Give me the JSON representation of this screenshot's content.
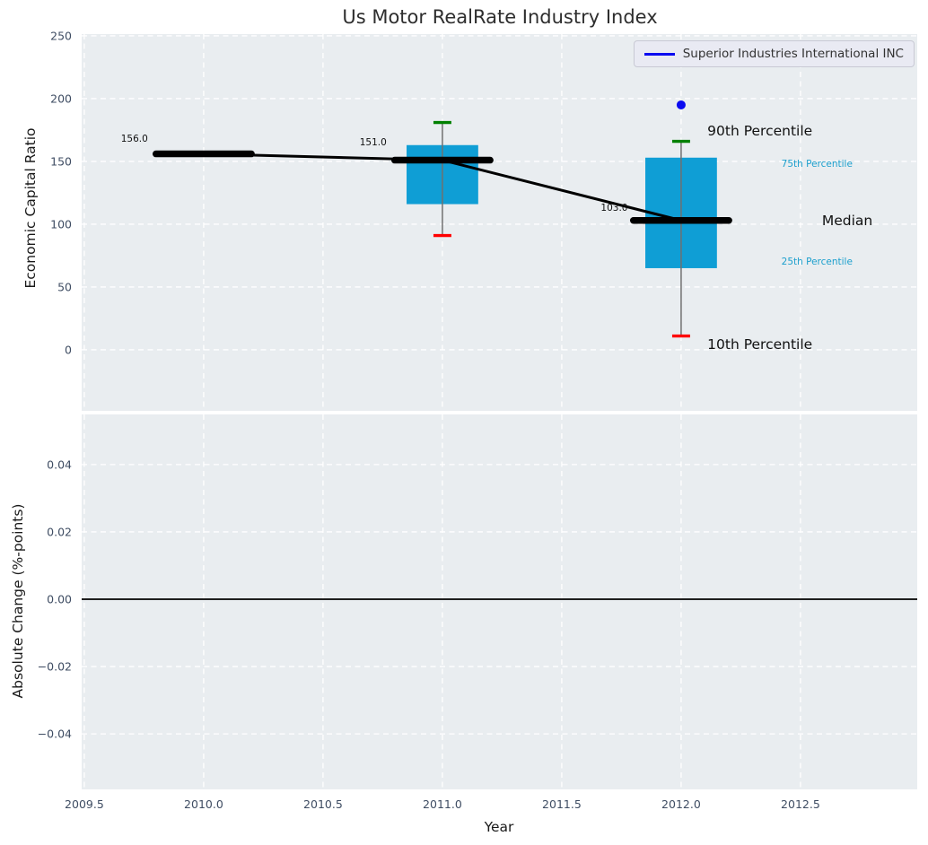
{
  "chart_data": {
    "type": "boxplot",
    "title": "Us Motor RealRate Industry Index",
    "legend": {
      "label": "Superior Industries International INC"
    },
    "colors": {
      "axes_bg": "#e9edf0",
      "grid": "#ffffff",
      "box_fill": "#0f9ed5",
      "percentile_text": "#1b9fcd",
      "cap_90th": "#008000",
      "cap_10th": "#ff0000",
      "median": "#000000",
      "trend": "#000000",
      "whisker": "#707070",
      "company": "#0a0af0",
      "zero_line": "#000000",
      "tick_text": "#3f4d63"
    },
    "x": {
      "label": "Year",
      "ticks": [
        2009.5,
        2010.0,
        2010.5,
        2011.0,
        2011.5,
        2012.0,
        2012.5
      ],
      "tick_labels": [
        "2009.5",
        "2010.0",
        "2010.5",
        "2011.0",
        "2011.5",
        "2012.0",
        "2012.5"
      ],
      "lim": [
        2009.489,
        2012.989
      ]
    },
    "top": {
      "ylabel": "Economic Capital Ratio",
      "ylim": [
        -48.6,
        251.4
      ],
      "yticks": [
        0,
        50,
        100,
        150,
        200,
        250
      ],
      "ytick_labels": [
        "0",
        "50",
        "100",
        "150",
        "200",
        "250"
      ],
      "grid": true,
      "boxes": [
        {
          "year": 2011,
          "p10": 91,
          "q1": 116,
          "median": 151,
          "q3": 163,
          "p90": 181
        },
        {
          "year": 2012,
          "p10": 11,
          "q1": 65,
          "median": 103,
          "q3": 153,
          "p90": 166
        }
      ],
      "medians": [
        {
          "year": 2010,
          "value": 156
        },
        {
          "year": 2011,
          "value": 151
        },
        {
          "year": 2012,
          "value": 103
        }
      ],
      "median_annotations": [
        {
          "text": "156.0",
          "x": 2009.71,
          "y": 168
        },
        {
          "text": "151.0",
          "x": 2010.71,
          "y": 165
        },
        {
          "text": "103.0",
          "x": 2011.72,
          "y": 113
        }
      ],
      "company_points": [
        {
          "year": 2012,
          "value": 195
        }
      ],
      "percentile_labels": [
        {
          "text": "90th Percentile",
          "x": 2012.11,
          "y": 174,
          "size": "large"
        },
        {
          "text": "75th Percentile",
          "x": 2012.42,
          "y": 148,
          "size": "small"
        },
        {
          "text": "Median",
          "x": 2012.59,
          "y": 103,
          "size": "large"
        },
        {
          "text": "25th Percentile",
          "x": 2012.42,
          "y": 70,
          "size": "small"
        },
        {
          "text": "10th Percentile",
          "x": 2012.11,
          "y": 4,
          "size": "large"
        }
      ]
    },
    "bottom": {
      "ylabel": "Absolute Change (%-points)",
      "ylim": [
        -0.0565,
        0.0549
      ],
      "yticks": [
        -0.04,
        -0.02,
        0.0,
        0.02,
        0.04
      ],
      "ytick_labels": [
        "−0.04",
        "−0.02",
        "0.00",
        "0.02",
        "0.04"
      ],
      "grid": true,
      "zero_line": 0.0
    }
  }
}
